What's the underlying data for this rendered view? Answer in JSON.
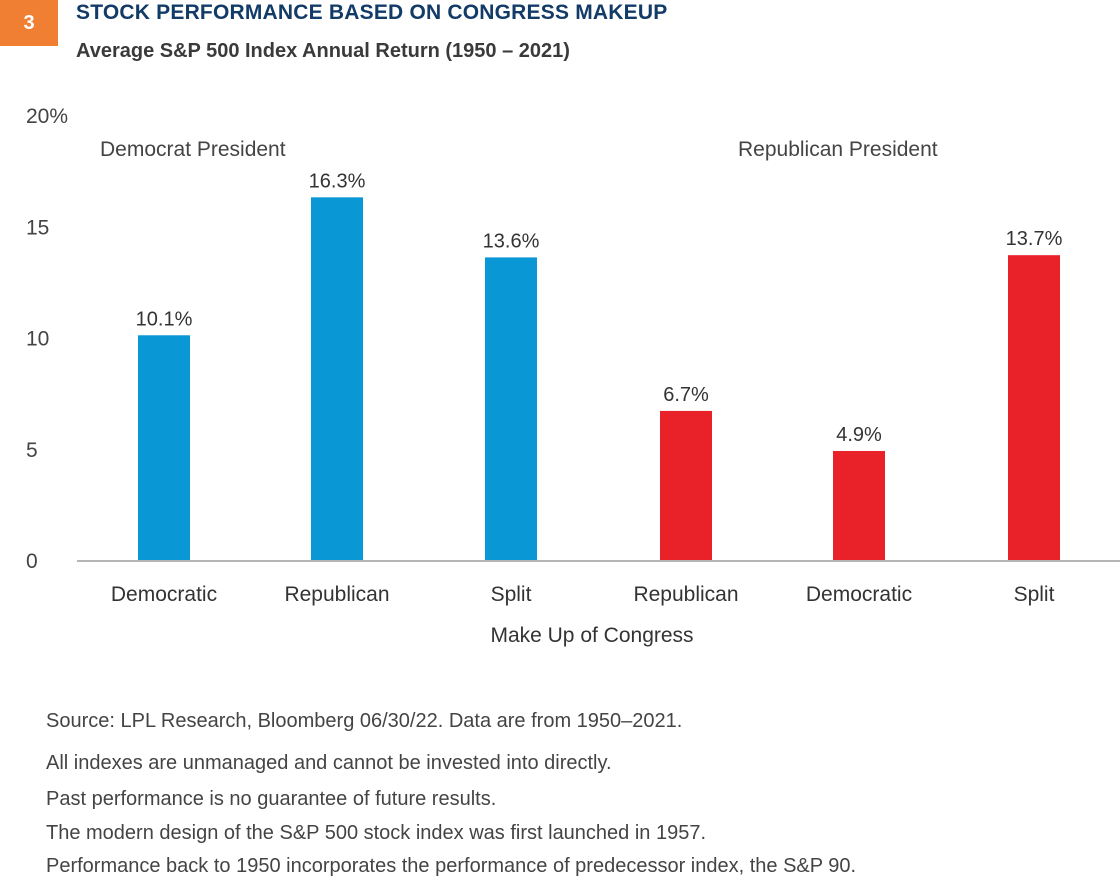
{
  "badge": "3",
  "title": "STOCK PERFORMANCE BASED ON CONGRESS MAKEUP",
  "subtitle": "Average S&P 500 Index Annual Return (1950 – 2021)",
  "chart_data": {
    "type": "bar",
    "ylim": [
      0,
      20
    ],
    "yticks": [
      0,
      5,
      10,
      15,
      20
    ],
    "ytick_labels": [
      "0",
      "5",
      "10",
      "15",
      "20%"
    ],
    "xlabel": "Make Up of Congress",
    "groups": [
      {
        "label": "Democrat President",
        "color": "#0a97d5",
        "categories": [
          "Democratic",
          "Republican",
          "Split"
        ],
        "values": [
          10.1,
          16.3,
          13.6
        ],
        "data_labels": [
          "10.1%",
          "16.3%",
          "13.6%"
        ]
      },
      {
        "label": "Republican President",
        "color": "#e92128",
        "categories": [
          "Republican",
          "Democratic",
          "Split"
        ],
        "values": [
          6.7,
          4.9,
          13.7
        ],
        "data_labels": [
          "6.7%",
          "4.9%",
          "13.7%"
        ]
      }
    ],
    "grid": false
  },
  "notes": [
    "Source: LPL Research, Bloomberg  06/30/22.  Data are from 1950–2021.",
    "All indexes are unmanaged and cannot be invested into directly.",
    "Past performance is no guarantee of future results.",
    "The modern design of the S&P 500 stock index was first launched in 1957.",
    "Performance back to 1950 incorporates the performance of predecessor index, the S&P 90."
  ]
}
